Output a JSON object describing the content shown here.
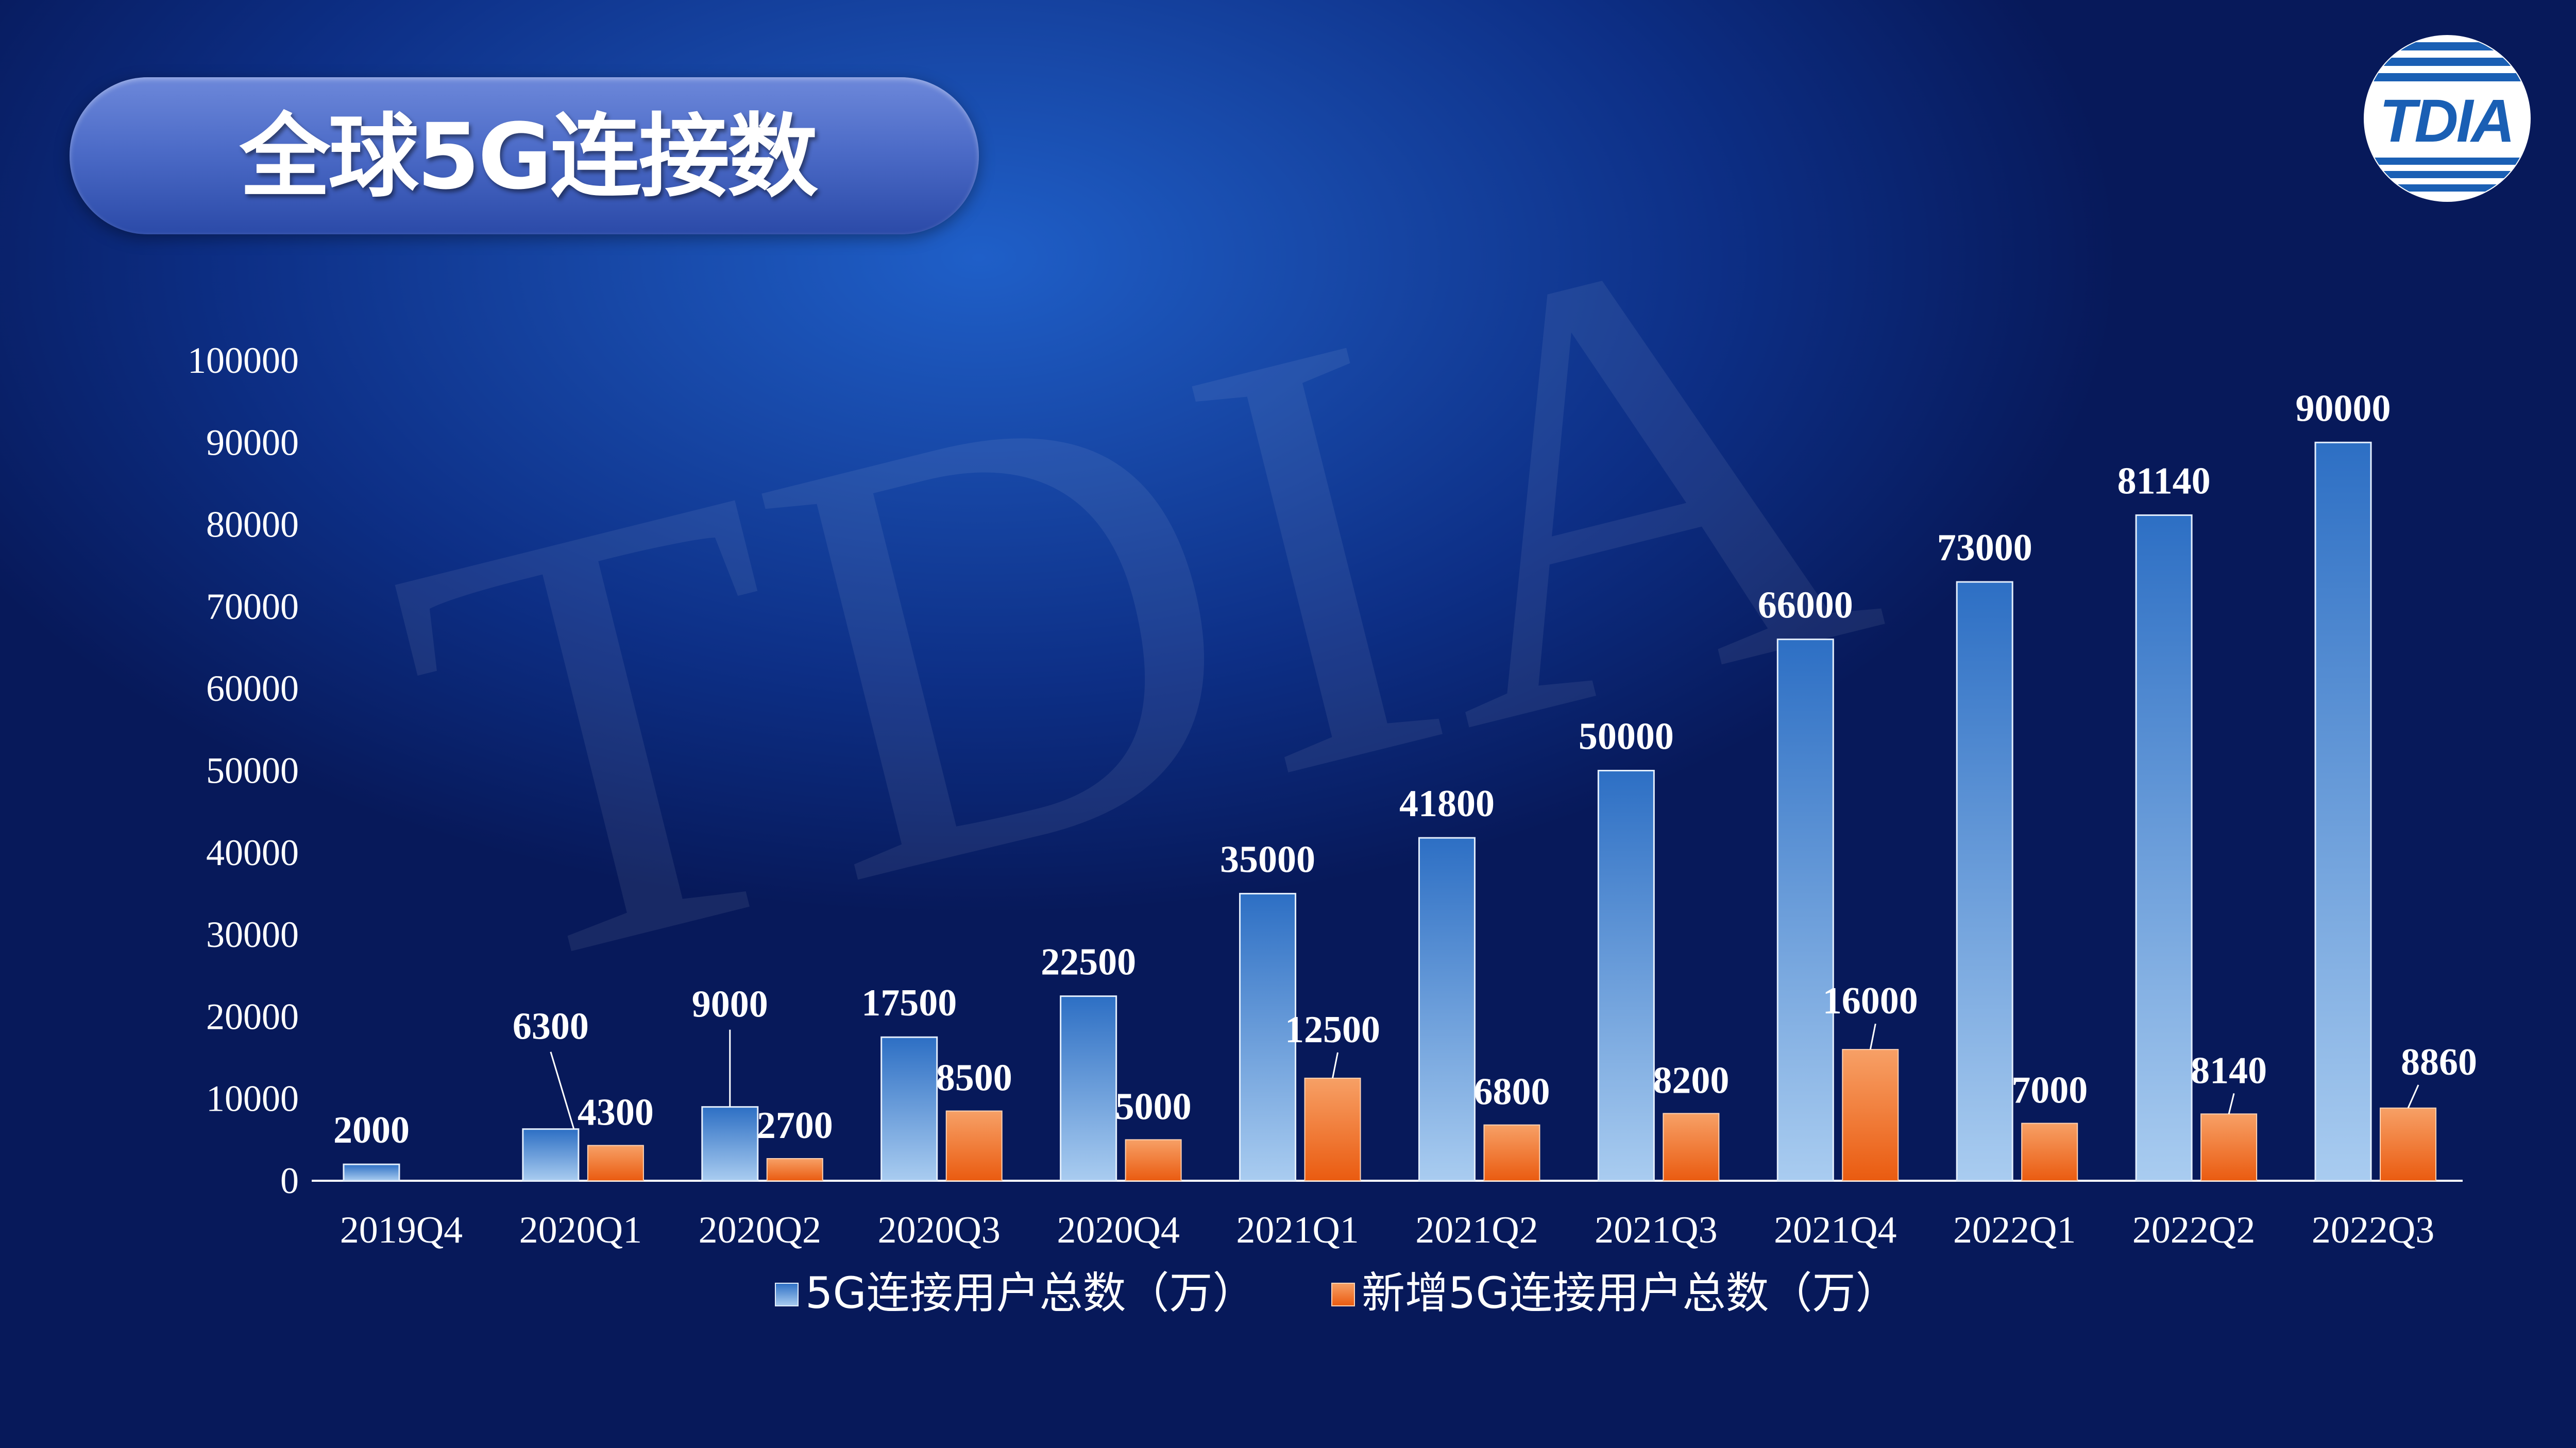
{
  "header": {
    "title": "全球5G连接数",
    "logo_text": "TDIA"
  },
  "watermark": "TDIA",
  "colors": {
    "series_total": "#3d7ed6",
    "series_new": "#f26a1b",
    "text": "#ffffff"
  },
  "chart_data": {
    "type": "bar",
    "categories": [
      "2019Q4",
      "2020Q1",
      "2020Q2",
      "2020Q3",
      "2020Q4",
      "2021Q1",
      "2021Q2",
      "2021Q3",
      "2021Q4",
      "2022Q1",
      "2022Q2",
      "2022Q3"
    ],
    "series": [
      {
        "name": "5G连接用户总数（万）",
        "values": [
          2000,
          6300,
          9000,
          17500,
          22500,
          35000,
          41800,
          50000,
          66000,
          73000,
          81140,
          90000
        ]
      },
      {
        "name": "新增5G连接用户总数（万）",
        "values": [
          null,
          4300,
          2700,
          8500,
          5000,
          12500,
          6800,
          8200,
          16000,
          7000,
          8140,
          8860
        ]
      }
    ],
    "yticks": [
      "0",
      "10000",
      "20000",
      "30000",
      "40000",
      "50000",
      "60000",
      "70000",
      "80000",
      "90000",
      "100000"
    ],
    "ylim": [
      0,
      100000
    ],
    "grid": false,
    "legend": "bottom"
  }
}
